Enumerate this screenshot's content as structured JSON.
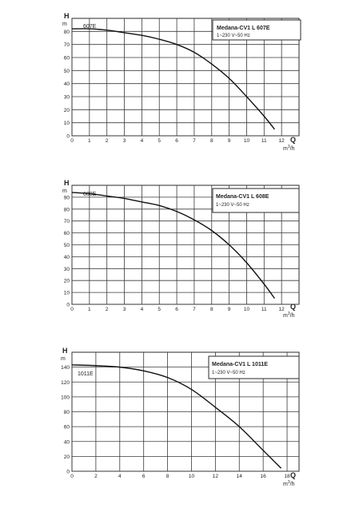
{
  "charts": [
    {
      "title": "Medana-CV1 L 607E",
      "subtitle": "1~230 V~50 Hz",
      "series_label": "607E",
      "y_symbol": "H",
      "y_unit": "m",
      "x_symbol": "Q",
      "x_unit_prefix": "m",
      "x_unit_exp": "3",
      "x_unit_suffix": "/h"
    },
    {
      "title": "Medana-CV1 L 608E",
      "subtitle": "1~230 V~50 Hz",
      "series_label": "608E",
      "y_symbol": "H",
      "y_unit": "m",
      "x_symbol": "Q",
      "x_unit_prefix": "m",
      "x_unit_exp": "3",
      "x_unit_suffix": "/h"
    },
    {
      "title": "Medana-CV1 L 1011E",
      "subtitle": "1~230 V~50 Hz",
      "series_label": "1011E",
      "y_symbol": "H",
      "y_unit": "m",
      "x_symbol": "Q",
      "x_unit_prefix": "m",
      "x_unit_exp": "3",
      "x_unit_suffix": "/h"
    }
  ],
  "chart_data": [
    {
      "type": "line",
      "title": "Medana-CV1 L 607E",
      "xlabel": "Q m³/h",
      "ylabel": "H m",
      "xlim": [
        0,
        13
      ],
      "ylim": [
        0,
        90
      ],
      "x_ticks": [
        0,
        1,
        2,
        3,
        4,
        5,
        6,
        7,
        8,
        9,
        10,
        11,
        12
      ],
      "y_ticks": [
        0,
        10,
        20,
        30,
        40,
        50,
        60,
        70,
        80
      ],
      "grid": true,
      "series": [
        {
          "name": "607E",
          "x": [
            0,
            1,
            2,
            3,
            4,
            5,
            6,
            7,
            8,
            9,
            10,
            11,
            11.6
          ],
          "y": [
            82,
            82,
            81,
            79,
            77,
            74,
            70,
            64,
            55,
            44,
            30,
            15,
            5
          ]
        }
      ]
    },
    {
      "type": "line",
      "title": "Medana-CV1 L 608E",
      "xlabel": "Q m³/h",
      "ylabel": "H m",
      "xlim": [
        0,
        13
      ],
      "ylim": [
        0,
        100
      ],
      "x_ticks": [
        0,
        1,
        2,
        3,
        4,
        5,
        6,
        7,
        8,
        9,
        10,
        11,
        12
      ],
      "y_ticks": [
        0,
        10,
        20,
        30,
        40,
        50,
        60,
        70,
        80,
        90
      ],
      "grid": true,
      "series": [
        {
          "name": "608E",
          "x": [
            0,
            1,
            2,
            3,
            4,
            5,
            6,
            7,
            8,
            9,
            10,
            11,
            11.6
          ],
          "y": [
            94,
            93,
            91,
            89,
            86,
            83,
            78,
            71,
            62,
            50,
            35,
            17,
            5
          ]
        }
      ]
    },
    {
      "type": "line",
      "title": "Medana-CV1 L 1011E",
      "xlabel": "Q m³/h",
      "ylabel": "H m",
      "xlim": [
        0,
        19
      ],
      "ylim": [
        0,
        160
      ],
      "x_ticks": [
        0,
        2,
        4,
        6,
        8,
        10,
        12,
        14,
        16,
        18
      ],
      "y_ticks": [
        0,
        20,
        40,
        60,
        80,
        100,
        120,
        140
      ],
      "grid": true,
      "series": [
        {
          "name": "1011E",
          "x": [
            0,
            2,
            4,
            6,
            8,
            10,
            12,
            14,
            16,
            17.5
          ],
          "y": [
            143,
            142,
            140,
            135,
            126,
            110,
            86,
            60,
            28,
            4
          ]
        }
      ]
    }
  ]
}
